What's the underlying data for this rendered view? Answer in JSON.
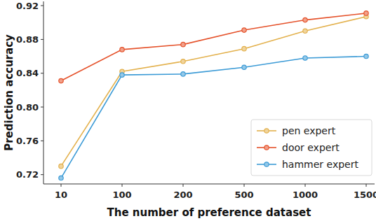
{
  "chart_data": {
    "type": "line",
    "x_label": "The number of preference dataset",
    "y_label": "Prediction accuracy",
    "categories": [
      "10",
      "100",
      "200",
      "500",
      "1000",
      "1500"
    ],
    "series": [
      {
        "name": "pen expert",
        "color": "#e3b14d",
        "marker": "o",
        "values": [
          0.73,
          0.842,
          0.854,
          0.869,
          0.89,
          0.907
        ]
      },
      {
        "name": "door expert",
        "color": "#e5522b",
        "marker": "o",
        "values": [
          0.831,
          0.868,
          0.874,
          0.891,
          0.903,
          0.911
        ]
      },
      {
        "name": "hammer expert",
        "color": "#3c9bd6",
        "marker": "o",
        "values": [
          0.716,
          0.838,
          0.839,
          0.847,
          0.858,
          0.86
        ]
      }
    ],
    "ylim": [
      0.709,
      0.925
    ],
    "yticks": [
      0.72,
      0.76,
      {
        "value": 0.8,
        "label": "0.80"
      },
      0.84,
      0.88,
      0.92
    ],
    "grid": false,
    "legend": "lower right"
  }
}
